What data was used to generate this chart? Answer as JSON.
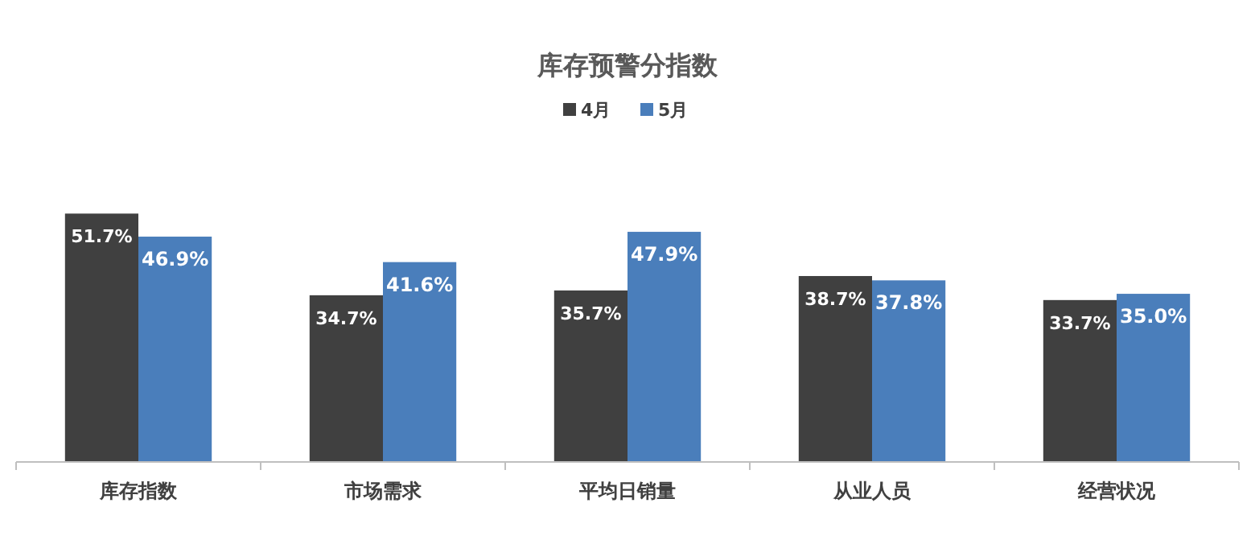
{
  "chart_data": {
    "type": "bar",
    "title": "库存预警分指数",
    "categories": [
      "库存指数",
      "市场需求",
      "平均日销量",
      "从业人员",
      "经营状况"
    ],
    "series": [
      {
        "name": "4月",
        "color": "#404040",
        "values": [
          51.7,
          34.7,
          35.7,
          38.7,
          33.7
        ],
        "value_labels": [
          "51.7%",
          "34.7%",
          "35.7%",
          "38.7%",
          "33.7%"
        ]
      },
      {
        "name": "5月",
        "color": "#4a7ebb",
        "values": [
          46.9,
          41.6,
          47.9,
          37.8,
          35.0
        ],
        "value_labels": [
          "46.9%",
          "41.6%",
          "47.9%",
          "37.8%",
          "35.0%"
        ]
      }
    ],
    "legend": "top",
    "grid": false
  }
}
